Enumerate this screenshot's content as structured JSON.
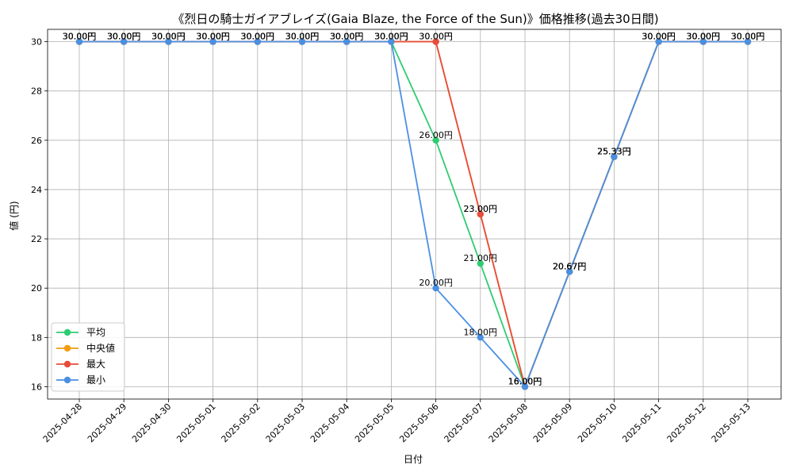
{
  "chart_data": {
    "type": "line",
    "title": "《烈日の騎士ガイアブレイズ(Gaia Blaze, the Force of the Sun)》価格推移(過去30日間)",
    "xlabel": "日付",
    "ylabel": "値 (円)",
    "ylim": [
      15.5,
      30.5
    ],
    "yticks": [
      16,
      18,
      20,
      22,
      24,
      26,
      28,
      30
    ],
    "grid": true,
    "legend_position": "lower-left",
    "value_suffix": "円",
    "categories": [
      "2025-04-28",
      "2025-04-29",
      "2025-04-30",
      "2025-05-01",
      "2025-05-02",
      "2025-05-03",
      "2025-05-04",
      "2025-05-05",
      "2025-05-06",
      "2025-05-07",
      "2025-05-08",
      "2025-05-09",
      "2025-05-10",
      "2025-05-11",
      "2025-05-12",
      "2025-05-13"
    ],
    "series": [
      {
        "name": "平均",
        "color": "#2ecc71",
        "values": [
          30,
          30,
          30,
          30,
          30,
          30,
          30,
          30,
          26,
          21,
          16,
          20.67,
          25.33,
          30,
          30,
          30
        ]
      },
      {
        "name": "中央値",
        "color": "#f39c12",
        "values": [
          30,
          30,
          30,
          30,
          30,
          30,
          30,
          30,
          30,
          23,
          16,
          20.67,
          25.33,
          30,
          30,
          30
        ]
      },
      {
        "name": "最大",
        "color": "#e74c3c",
        "values": [
          30,
          30,
          30,
          30,
          30,
          30,
          30,
          30,
          30,
          23,
          16,
          20.67,
          25.33,
          30,
          30,
          30
        ]
      },
      {
        "name": "最小",
        "color": "#4a90e2",
        "values": [
          30,
          30,
          30,
          30,
          30,
          30,
          30,
          30,
          20,
          18,
          16,
          20.67,
          25.33,
          30,
          30,
          30
        ]
      }
    ]
  }
}
